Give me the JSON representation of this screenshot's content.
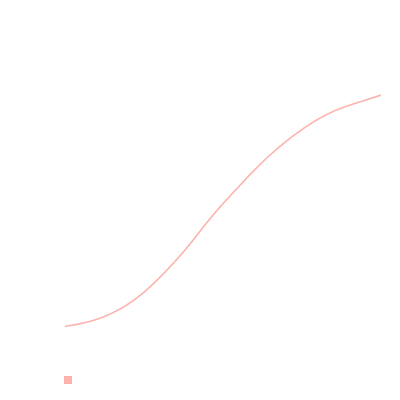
{
  "chart_data": {
    "type": "line",
    "title": "",
    "xlabel": "",
    "ylabel": "",
    "grid": false,
    "legend_position": "bottom-left",
    "series": [
      {
        "name": "",
        "color": "#fbb4ae",
        "x": [
          0,
          0.05,
          0.1,
          0.15,
          0.2,
          0.25,
          0.3,
          0.35,
          0.4,
          0.45,
          0.5,
          0.55,
          0.6,
          0.65,
          0.7,
          0.75,
          0.8,
          0.85,
          0.9,
          0.95,
          1
        ],
        "y": [
          0,
          0.012,
          0.03,
          0.058,
          0.096,
          0.147,
          0.211,
          0.283,
          0.363,
          0.45,
          0.53,
          0.604,
          0.676,
          0.742,
          0.8,
          0.851,
          0.895,
          0.93,
          0.956,
          0.978,
          1
        ]
      }
    ],
    "xlim": [
      0,
      1
    ],
    "ylim": [
      0,
      1
    ]
  }
}
